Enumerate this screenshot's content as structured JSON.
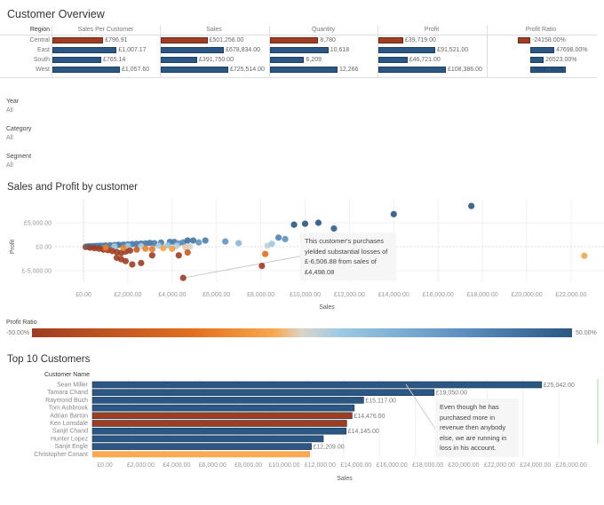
{
  "overview": {
    "title": "Customer Overview",
    "region_header": "Region",
    "columns": [
      "Sales Per Customer",
      "Sales",
      "Quantity",
      "Profit",
      "Profit Ratio"
    ],
    "rows": [
      {
        "region": "Central",
        "negative": true,
        "values": [
          "£796.91",
          "£501,256.00",
          "8,780",
          "£39,719.00",
          "-24158.00%"
        ],
        "nums": [
          796.91,
          501256,
          8780,
          39719,
          -24158
        ]
      },
      {
        "region": "East",
        "negative": false,
        "values": [
          "£1,007.17",
          "£678,834.00",
          "10,618",
          "£91,521.00",
          "47698.00%"
        ],
        "nums": [
          1007.17,
          678834,
          10618,
          91521,
          47698
        ]
      },
      {
        "region": "South",
        "negative": false,
        "values": [
          "£765.14",
          "£391,750.00",
          "6,209",
          "£46,721.00",
          "26523.00%"
        ],
        "nums": [
          765.14,
          391750,
          6209,
          46721,
          26523
        ]
      },
      {
        "region": "West",
        "negative": false,
        "values": [
          "£1,057.60",
          "£725,514.00",
          "12,266",
          "£108,386.00",
          "70397.00%"
        ],
        "nums": [
          1057.6,
          725514,
          12266,
          108386,
          70397
        ]
      }
    ]
  },
  "filters": [
    {
      "label": "Year",
      "value": "All"
    },
    {
      "label": "Category",
      "value": "All"
    },
    {
      "label": "Segment",
      "value": "All"
    }
  ],
  "colors": {
    "negative": "#9e3d22",
    "positive": "#2a5783",
    "orange": "#f9a94f"
  },
  "chart_data": [
    {
      "type": "scatter",
      "title": "Sales and Profit by customer",
      "xlabel": "Sales",
      "ylabel": "Profit",
      "xlim": [
        -2000,
        24000
      ],
      "ylim": [
        -8000,
        9000
      ],
      "xticks": [
        "£0.00",
        "£2,000.00",
        "£4,000.00",
        "£6,000.00",
        "£8,000.00",
        "£10,000.00",
        "£12,000.00",
        "£14,000.00",
        "£16,000.00",
        "£18,000.00",
        "£20,000.00",
        "£22,000.00"
      ],
      "yticks": [
        "£5,000.00",
        "£0.00",
        "£-5,000.00"
      ],
      "color_legend": {
        "title": "Profit Ratio",
        "min": "-50.00%",
        "max": "50.00%"
      },
      "annotation": "This customer's purchases yielded substantial losses of £-6,506.88 from sales of £4,498.08",
      "points": [
        [
          100,
          -50
        ],
        [
          200,
          60
        ],
        [
          300,
          80
        ],
        [
          400,
          100
        ],
        [
          500,
          120
        ],
        [
          600,
          150
        ],
        [
          700,
          160
        ],
        [
          800,
          200
        ],
        [
          900,
          180
        ],
        [
          1000,
          250
        ],
        [
          1200,
          300
        ],
        [
          1400,
          350
        ],
        [
          1500,
          320
        ],
        [
          1600,
          400
        ],
        [
          1800,
          450
        ],
        [
          2000,
          500
        ],
        [
          2200,
          550
        ],
        [
          2400,
          600
        ],
        [
          2600,
          650
        ],
        [
          2800,
          700
        ],
        [
          3000,
          800
        ],
        [
          3200,
          750
        ],
        [
          3500,
          850
        ],
        [
          3900,
          1000
        ],
        [
          4100,
          1000
        ],
        [
          4300,
          700
        ],
        [
          4500,
          900
        ],
        [
          4700,
          1300
        ],
        [
          4950,
          1300
        ],
        [
          5200,
          900
        ],
        [
          5500,
          1300
        ],
        [
          3400,
          200
        ],
        [
          3800,
          300
        ],
        [
          4200,
          150
        ],
        [
          4800,
          50
        ],
        [
          2600,
          100
        ],
        [
          2000,
          150
        ],
        [
          1400,
          80
        ],
        [
          300,
          -200
        ],
        [
          500,
          -300
        ],
        [
          700,
          -400
        ],
        [
          900,
          -600
        ],
        [
          1100,
          -700
        ],
        [
          1300,
          -900
        ],
        [
          1500,
          -1100
        ],
        [
          1700,
          -1300
        ],
        [
          1900,
          -1000
        ],
        [
          2100,
          -800
        ],
        [
          2400,
          -600
        ],
        [
          2800,
          -400
        ],
        [
          3100,
          -500
        ],
        [
          3600,
          -300
        ],
        [
          4000,
          -400
        ],
        [
          4600,
          -100
        ],
        [
          1000,
          -150
        ],
        [
          1800,
          -250
        ],
        [
          1500,
          -2300
        ],
        [
          1700,
          -2600
        ],
        [
          1900,
          -3000
        ],
        [
          2200,
          -3700
        ],
        [
          2600,
          -3400
        ],
        [
          3100,
          -1800
        ],
        [
          4300,
          -1800
        ],
        [
          4700,
          -1200
        ],
        [
          4498.08,
          -6506.88
        ],
        [
          6400,
          1100
        ],
        [
          7000,
          750
        ],
        [
          8050,
          -4000
        ],
        [
          8200,
          -1500
        ],
        [
          8300,
          200
        ],
        [
          8500,
          600
        ],
        [
          8800,
          1900
        ],
        [
          9100,
          1600
        ],
        [
          9500,
          4600
        ],
        [
          10000,
          4800
        ],
        [
          10600,
          5000
        ],
        [
          11300,
          3800
        ],
        [
          14000,
          6800
        ],
        [
          17500,
          8500
        ],
        [
          22600,
          -1900
        ]
      ]
    },
    {
      "type": "bar",
      "title": "Top 10 Customers",
      "ylabel": "Customer Name",
      "xlabel": "Sales",
      "xlim": [
        0,
        28000
      ],
      "xticks": [
        "£0.00",
        "£2,000.00",
        "£4,000.00",
        "£6,000.00",
        "£8,000.00",
        "£10,000.00",
        "£12,000.00",
        "£14,000.00",
        "£16,000.00",
        "£18,000.00",
        "£20,000.00",
        "£22,000.00",
        "£24,000.00",
        "£26,000.00"
      ],
      "annotation": "Even though he has purchased more in revenue then anybody else, we are running in loss in his account.",
      "categories": [
        "Sean Miller",
        "Tamara Chand",
        "Raymond Buch",
        "Tom Ashbrook",
        "Adrian Barton",
        "Ken Lonsdale",
        "Sanjit Chand",
        "Hunter Lopez",
        "Sanjit Engle",
        "Christopher Conant"
      ],
      "values": [
        25042,
        19050,
        15117,
        14596,
        14476,
        14175,
        14145,
        12873,
        12209,
        12129
      ],
      "labels": [
        "£25,042.00",
        "£19,050.00",
        "£15,117.00",
        "",
        "£14,476.00",
        "",
        "£14,145.00",
        "",
        "£12,209.00",
        ""
      ],
      "colors": [
        "#2a5783",
        "#2a5783",
        "#2a5783",
        "#2a5783",
        "#9e3d22",
        "#9e3d22",
        "#2a5783",
        "#2a5783",
        "#2a5783",
        "#f9a94f"
      ]
    }
  ]
}
